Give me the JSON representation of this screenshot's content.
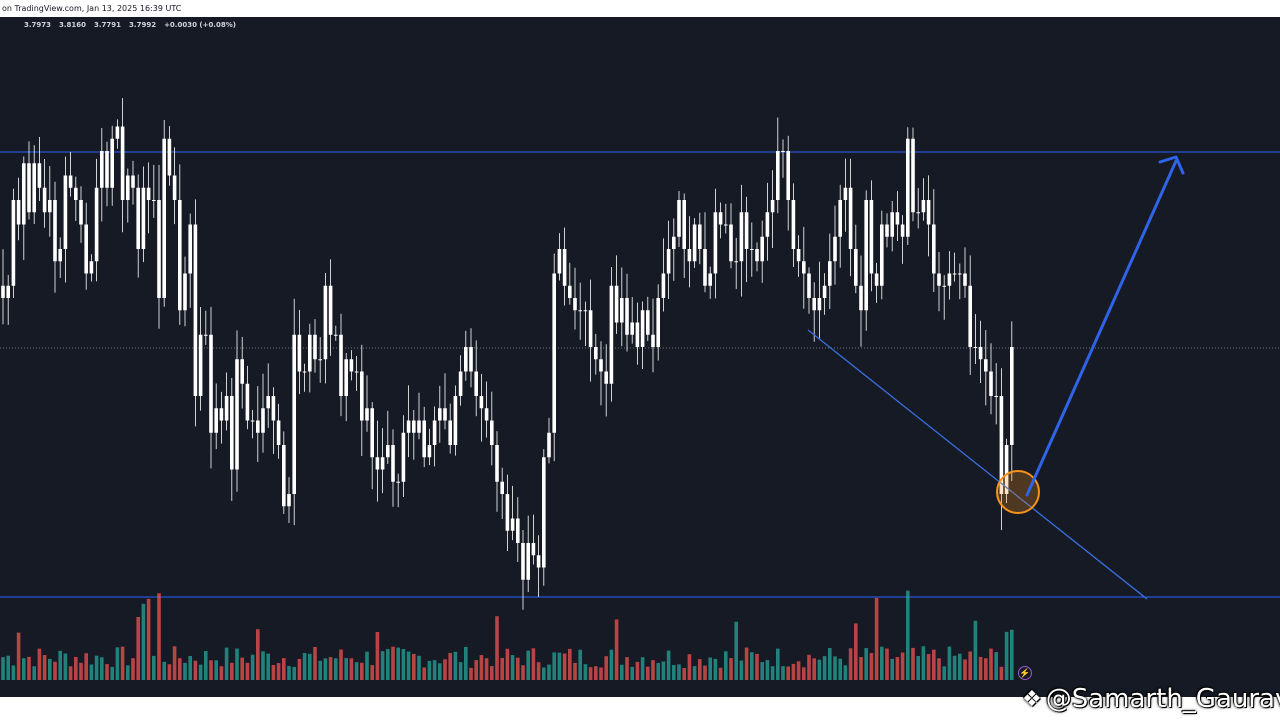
{
  "header": {
    "source_text": "on TradingView.com, Jan 13, 2025 16:39 UTC"
  },
  "ohlc": {
    "open": "3.7973",
    "high": "3.8160",
    "low": "3.7791",
    "close": "3.7992",
    "change": "+0.0030 (+0.08%)"
  },
  "watermark": {
    "text": "@Samarth_Gaurav",
    "icon": "diamond-logo-icon"
  },
  "colors": {
    "background": "#161a25",
    "candle": "#ffffff",
    "level_line": "#2962ff",
    "trendline": "#3a6fe0",
    "arrow": "#2f64e8",
    "highlight_circle": "#f7931a",
    "volume_up": "#26a69a",
    "volume_down": "#ef5350"
  },
  "chart_data": {
    "type": "candlestick",
    "grid": false,
    "last_price": 3.7992,
    "candles": [
      3.84,
      3.85,
      3.92,
      3.9,
      3.95,
      3.91,
      3.95,
      3.93,
      3.91,
      3.92,
      3.87,
      3.88,
      3.94,
      3.93,
      3.92,
      3.9,
      3.86,
      3.87,
      3.93,
      3.96,
      3.93,
      3.97,
      3.98,
      3.92,
      3.94,
      3.93,
      3.88,
      3.93,
      3.92,
      3.92,
      3.84,
      3.97,
      3.94,
      3.92,
      3.83,
      3.86,
      3.9,
      3.76,
      3.81,
      3.81,
      3.73,
      3.75,
      3.74,
      3.76,
      3.7,
      3.79,
      3.77,
      3.74,
      3.74,
      3.73,
      3.75,
      3.76,
      3.74,
      3.72,
      3.67,
      3.68,
      3.81,
      3.78,
      3.78,
      3.81,
      3.79,
      3.79,
      3.85,
      3.81,
      3.81,
      3.76,
      3.79,
      3.78,
      3.78,
      3.74,
      3.75,
      3.71,
      3.7,
      3.71,
      3.72,
      3.69,
      3.69,
      3.73,
      3.74,
      3.73,
      3.74,
      3.71,
      3.72,
      3.74,
      3.75,
      3.74,
      3.72,
      3.76,
      3.78,
      3.8,
      3.78,
      3.76,
      3.75,
      3.74,
      3.72,
      3.69,
      3.68,
      3.65,
      3.66,
      3.64,
      3.61,
      3.64,
      3.63,
      3.62,
      3.71,
      3.73,
      3.86,
      3.88,
      3.85,
      3.84,
      3.83,
      3.83,
      3.83,
      3.8,
      3.79,
      3.78,
      3.77,
      3.85,
      3.82,
      3.84,
      3.81,
      3.82,
      3.8,
      3.83,
      3.81,
      3.8,
      3.84,
      3.86,
      3.88,
      3.89,
      3.92,
      3.88,
      3.87,
      3.9,
      3.88,
      3.85,
      3.86,
      3.91,
      3.9,
      3.9,
      3.87,
      3.87,
      3.91,
      3.88,
      3.88,
      3.87,
      3.89,
      3.91,
      3.92,
      3.96,
      3.96,
      3.92,
      3.88,
      3.87,
      3.86,
      3.84,
      3.83,
      3.84,
      3.85,
      3.87,
      3.89,
      3.92,
      3.93,
      3.88,
      3.85,
      3.83,
      3.92,
      3.86,
      3.85,
      3.9,
      3.89,
      3.91,
      3.9,
      3.89,
      3.97,
      3.91,
      3.91,
      3.92,
      3.9,
      3.86,
      3.85,
      3.85,
      3.86,
      3.86,
      3.86,
      3.85,
      3.8,
      3.8,
      3.79,
      3.78,
      3.76,
      3.76,
      3.68,
      3.72,
      3.8
    ]
  }
}
